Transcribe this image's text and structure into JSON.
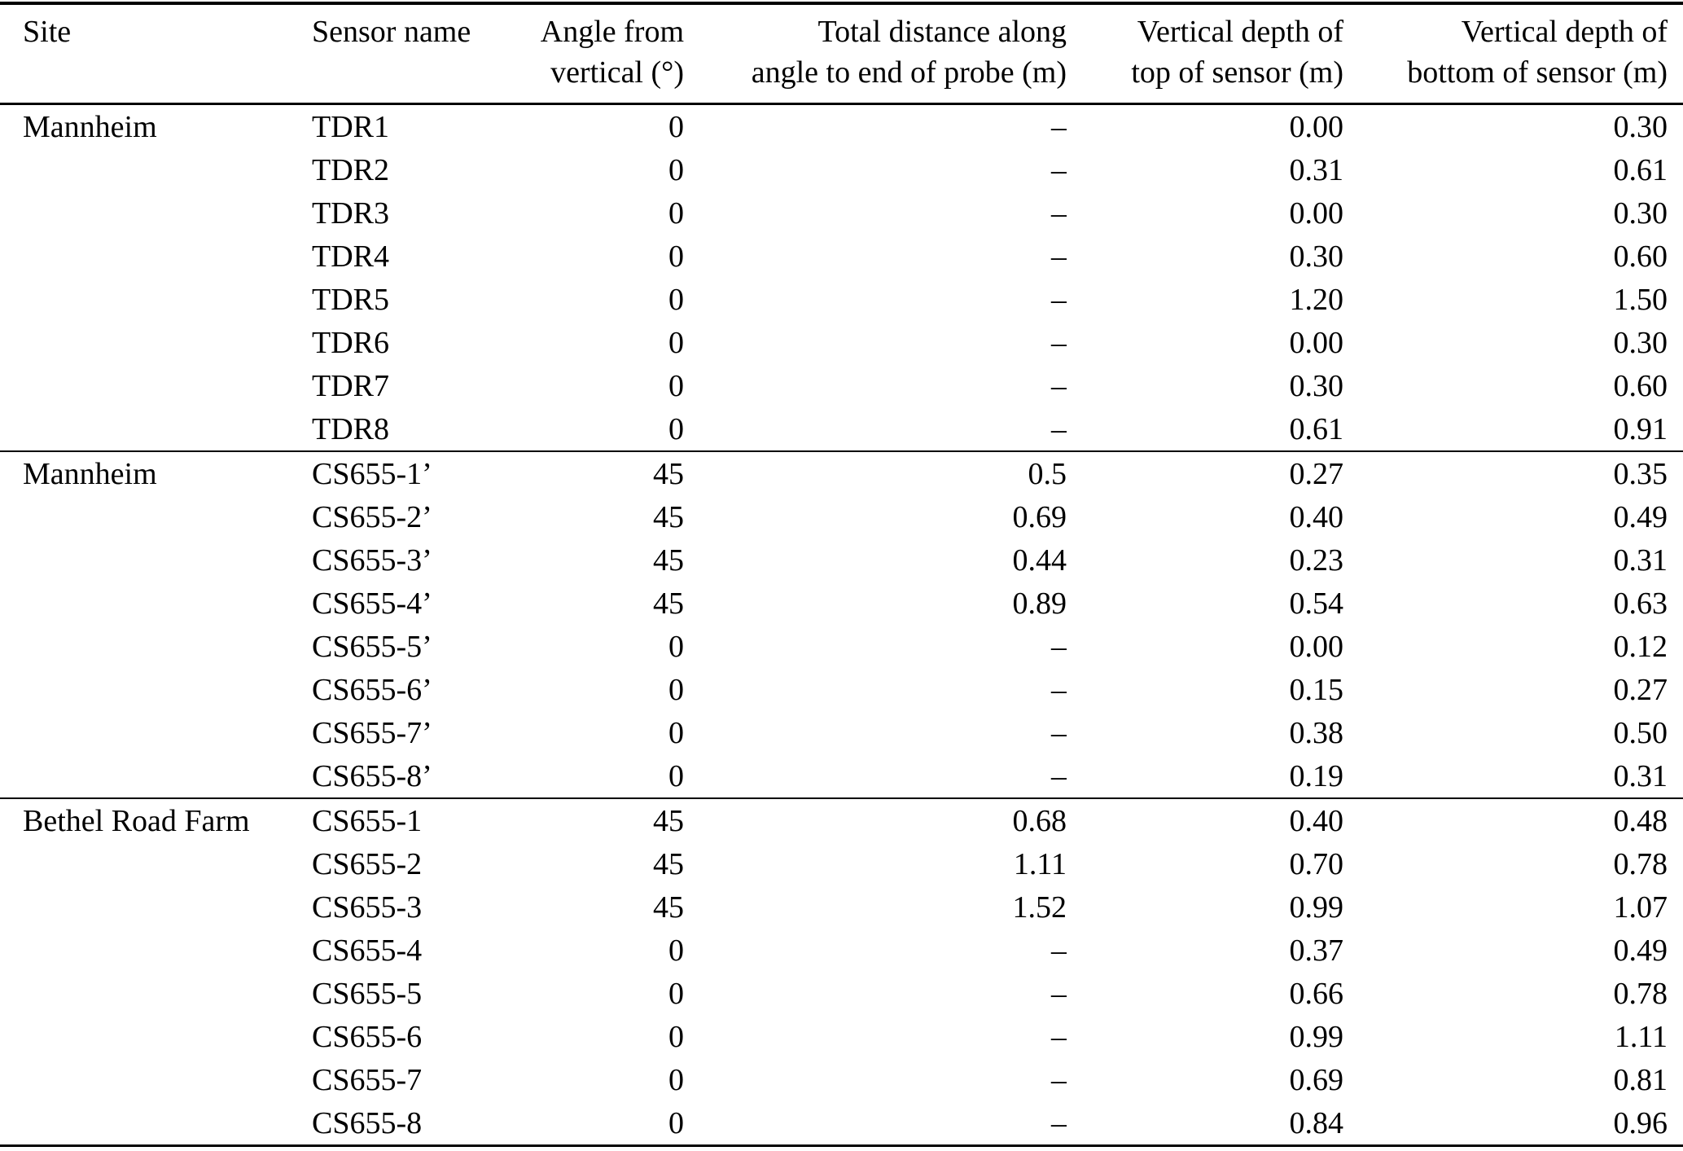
{
  "table": {
    "headers": [
      {
        "line1": "Site",
        "line2": ""
      },
      {
        "line1": "Sensor name",
        "line2": ""
      },
      {
        "line1": "Angle from",
        "line2": "vertical (°)"
      },
      {
        "line1": "Total distance along",
        "line2": "angle to end of probe (m)"
      },
      {
        "line1": "Vertical depth of",
        "line2": "top of sensor (m)"
      },
      {
        "line1": "Vertical depth of",
        "line2": "bottom of sensor (m)"
      }
    ],
    "sections": [
      {
        "site": "Mannheim",
        "rows": [
          {
            "sensor": "TDR1",
            "angle": "0",
            "distance": "–",
            "top": "0.00",
            "bottom": "0.30"
          },
          {
            "sensor": "TDR2",
            "angle": "0",
            "distance": "–",
            "top": "0.31",
            "bottom": "0.61"
          },
          {
            "sensor": "TDR3",
            "angle": "0",
            "distance": "–",
            "top": "0.00",
            "bottom": "0.30"
          },
          {
            "sensor": "TDR4",
            "angle": "0",
            "distance": "–",
            "top": "0.30",
            "bottom": "0.60"
          },
          {
            "sensor": "TDR5",
            "angle": "0",
            "distance": "–",
            "top": "1.20",
            "bottom": "1.50"
          },
          {
            "sensor": "TDR6",
            "angle": "0",
            "distance": "–",
            "top": "0.00",
            "bottom": "0.30"
          },
          {
            "sensor": "TDR7",
            "angle": "0",
            "distance": "–",
            "top": "0.30",
            "bottom": "0.60"
          },
          {
            "sensor": "TDR8",
            "angle": "0",
            "distance": "–",
            "top": "0.61",
            "bottom": "0.91"
          }
        ]
      },
      {
        "site": "Mannheim",
        "rows": [
          {
            "sensor": "CS655-1’",
            "angle": "45",
            "distance": "0.5",
            "top": "0.27",
            "bottom": "0.35"
          },
          {
            "sensor": "CS655-2’",
            "angle": "45",
            "distance": "0.69",
            "top": "0.40",
            "bottom": "0.49"
          },
          {
            "sensor": "CS655-3’",
            "angle": "45",
            "distance": "0.44",
            "top": "0.23",
            "bottom": "0.31"
          },
          {
            "sensor": "CS655-4’",
            "angle": "45",
            "distance": "0.89",
            "top": "0.54",
            "bottom": "0.63"
          },
          {
            "sensor": "CS655-5’",
            "angle": "0",
            "distance": "–",
            "top": "0.00",
            "bottom": "0.12"
          },
          {
            "sensor": "CS655-6’",
            "angle": "0",
            "distance": "–",
            "top": "0.15",
            "bottom": "0.27"
          },
          {
            "sensor": "CS655-7’",
            "angle": "0",
            "distance": "–",
            "top": "0.38",
            "bottom": "0.50"
          },
          {
            "sensor": "CS655-8’",
            "angle": "0",
            "distance": "–",
            "top": "0.19",
            "bottom": "0.31"
          }
        ]
      },
      {
        "site": "Bethel Road Farm",
        "rows": [
          {
            "sensor": "CS655-1",
            "angle": "45",
            "distance": "0.68",
            "top": "0.40",
            "bottom": "0.48"
          },
          {
            "sensor": "CS655-2",
            "angle": "45",
            "distance": "1.11",
            "top": "0.70",
            "bottom": "0.78"
          },
          {
            "sensor": "CS655-3",
            "angle": "45",
            "distance": "1.52",
            "top": "0.99",
            "bottom": "1.07"
          },
          {
            "sensor": "CS655-4",
            "angle": "0",
            "distance": "–",
            "top": "0.37",
            "bottom": "0.49"
          },
          {
            "sensor": "CS655-5",
            "angle": "0",
            "distance": "–",
            "top": "0.66",
            "bottom": "0.78"
          },
          {
            "sensor": "CS655-6",
            "angle": "0",
            "distance": "–",
            "top": "0.99",
            "bottom": "1.11"
          },
          {
            "sensor": "CS655-7",
            "angle": "0",
            "distance": "–",
            "top": "0.69",
            "bottom": "0.81"
          },
          {
            "sensor": "CS655-8",
            "angle": "0",
            "distance": "–",
            "top": "0.84",
            "bottom": "0.96"
          }
        ]
      }
    ]
  }
}
